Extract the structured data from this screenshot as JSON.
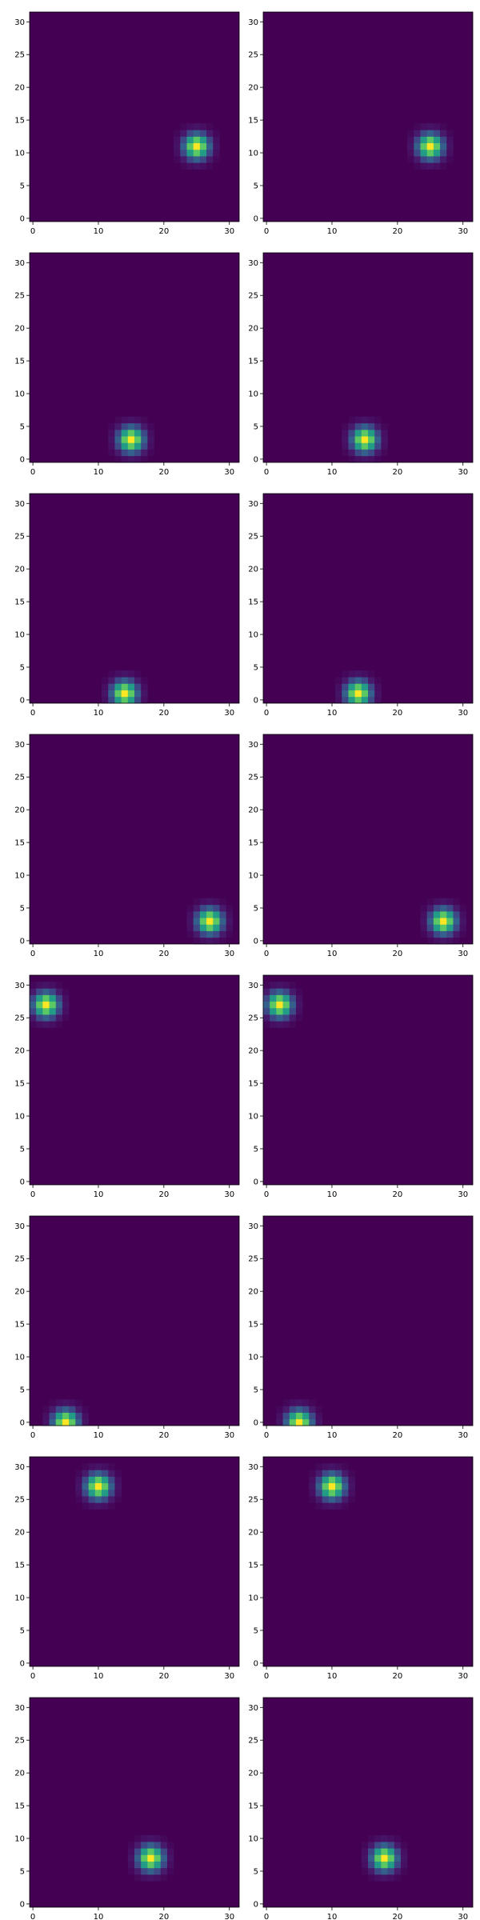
{
  "chart_data": [
    {
      "type": "heatmap",
      "center": [
        25,
        11
      ],
      "x_ticks": [
        0,
        10,
        20,
        30
      ],
      "y_ticks": [
        0,
        5,
        10,
        15,
        20,
        25,
        30
      ],
      "xlim": [
        -0.5,
        31.5
      ],
      "ylim": [
        -0.5,
        31.5
      ],
      "grid_size": 32
    },
    {
      "type": "heatmap",
      "center": [
        25,
        11
      ],
      "x_ticks": [
        0,
        10,
        20,
        30
      ],
      "y_ticks": [
        0,
        5,
        10,
        15,
        20,
        25,
        30
      ],
      "xlim": [
        -0.5,
        31.5
      ],
      "ylim": [
        -0.5,
        31.5
      ],
      "grid_size": 32
    },
    {
      "type": "heatmap",
      "center": [
        15,
        3
      ],
      "x_ticks": [
        0,
        10,
        20,
        30
      ],
      "y_ticks": [
        0,
        5,
        10,
        15,
        20,
        25,
        30
      ],
      "xlim": [
        -0.5,
        31.5
      ],
      "ylim": [
        -0.5,
        31.5
      ],
      "grid_size": 32
    },
    {
      "type": "heatmap",
      "center": [
        15,
        3
      ],
      "x_ticks": [
        0,
        10,
        20,
        30
      ],
      "y_ticks": [
        0,
        5,
        10,
        15,
        20,
        25,
        30
      ],
      "xlim": [
        -0.5,
        31.5
      ],
      "ylim": [
        -0.5,
        31.5
      ],
      "grid_size": 32
    },
    {
      "type": "heatmap",
      "center": [
        14,
        1
      ],
      "x_ticks": [
        0,
        10,
        20,
        30
      ],
      "y_ticks": [
        0,
        5,
        10,
        15,
        20,
        25,
        30
      ],
      "xlim": [
        -0.5,
        31.5
      ],
      "ylim": [
        -0.5,
        31.5
      ],
      "grid_size": 32
    },
    {
      "type": "heatmap",
      "center": [
        14,
        1
      ],
      "x_ticks": [
        0,
        10,
        20,
        30
      ],
      "y_ticks": [
        0,
        5,
        10,
        15,
        20,
        25,
        30
      ],
      "xlim": [
        -0.5,
        31.5
      ],
      "ylim": [
        -0.5,
        31.5
      ],
      "grid_size": 32
    },
    {
      "type": "heatmap",
      "center": [
        27,
        3
      ],
      "x_ticks": [
        0,
        10,
        20,
        30
      ],
      "y_ticks": [
        0,
        5,
        10,
        15,
        20,
        25,
        30
      ],
      "xlim": [
        -0.5,
        31.5
      ],
      "ylim": [
        -0.5,
        31.5
      ],
      "grid_size": 32
    },
    {
      "type": "heatmap",
      "center": [
        27,
        3
      ],
      "x_ticks": [
        0,
        10,
        20,
        30
      ],
      "y_ticks": [
        0,
        5,
        10,
        15,
        20,
        25,
        30
      ],
      "xlim": [
        -0.5,
        31.5
      ],
      "ylim": [
        -0.5,
        31.5
      ],
      "grid_size": 32
    },
    {
      "type": "heatmap",
      "center": [
        2,
        27
      ],
      "x_ticks": [
        0,
        10,
        20,
        30
      ],
      "y_ticks": [
        0,
        5,
        10,
        15,
        20,
        25,
        30
      ],
      "xlim": [
        -0.5,
        31.5
      ],
      "ylim": [
        -0.5,
        31.5
      ],
      "grid_size": 32
    },
    {
      "type": "heatmap",
      "center": [
        2,
        27
      ],
      "x_ticks": [
        0,
        10,
        20,
        30
      ],
      "y_ticks": [
        0,
        5,
        10,
        15,
        20,
        25,
        30
      ],
      "xlim": [
        -0.5,
        31.5
      ],
      "ylim": [
        -0.5,
        31.5
      ],
      "grid_size": 32
    },
    {
      "type": "heatmap",
      "center": [
        5,
        0
      ],
      "x_ticks": [
        0,
        10,
        20,
        30
      ],
      "y_ticks": [
        0,
        5,
        10,
        15,
        20,
        25,
        30
      ],
      "xlim": [
        -0.5,
        31.5
      ],
      "ylim": [
        -0.5,
        31.5
      ],
      "grid_size": 32
    },
    {
      "type": "heatmap",
      "center": [
        5,
        0
      ],
      "x_ticks": [
        0,
        10,
        20,
        30
      ],
      "y_ticks": [
        0,
        5,
        10,
        15,
        20,
        25,
        30
      ],
      "xlim": [
        -0.5,
        31.5
      ],
      "ylim": [
        -0.5,
        31.5
      ],
      "grid_size": 32
    },
    {
      "type": "heatmap",
      "center": [
        10,
        27
      ],
      "x_ticks": [
        0,
        10,
        20,
        30
      ],
      "y_ticks": [
        0,
        5,
        10,
        15,
        20,
        25,
        30
      ],
      "xlim": [
        -0.5,
        31.5
      ],
      "ylim": [
        -0.5,
        31.5
      ],
      "grid_size": 32
    },
    {
      "type": "heatmap",
      "center": [
        10,
        27
      ],
      "x_ticks": [
        0,
        10,
        20,
        30
      ],
      "y_ticks": [
        0,
        5,
        10,
        15,
        20,
        25,
        30
      ],
      "xlim": [
        -0.5,
        31.5
      ],
      "ylim": [
        -0.5,
        31.5
      ],
      "grid_size": 32
    },
    {
      "type": "heatmap",
      "center": [
        18,
        7
      ],
      "x_ticks": [
        0,
        10,
        20,
        30
      ],
      "y_ticks": [
        0,
        5,
        10,
        15,
        20,
        25,
        30
      ],
      "xlim": [
        -0.5,
        31.5
      ],
      "ylim": [
        -0.5,
        31.5
      ],
      "grid_size": 32
    },
    {
      "type": "heatmap",
      "center": [
        18,
        7
      ],
      "x_ticks": [
        0,
        10,
        20,
        30
      ],
      "y_ticks": [
        0,
        5,
        10,
        15,
        20,
        25,
        30
      ],
      "xlim": [
        -0.5,
        31.5
      ],
      "ylim": [
        -0.5,
        31.5
      ],
      "grid_size": 32
    }
  ],
  "colormap": "viridis",
  "colors": {
    "background": "#440154",
    "axis": "#000000"
  }
}
